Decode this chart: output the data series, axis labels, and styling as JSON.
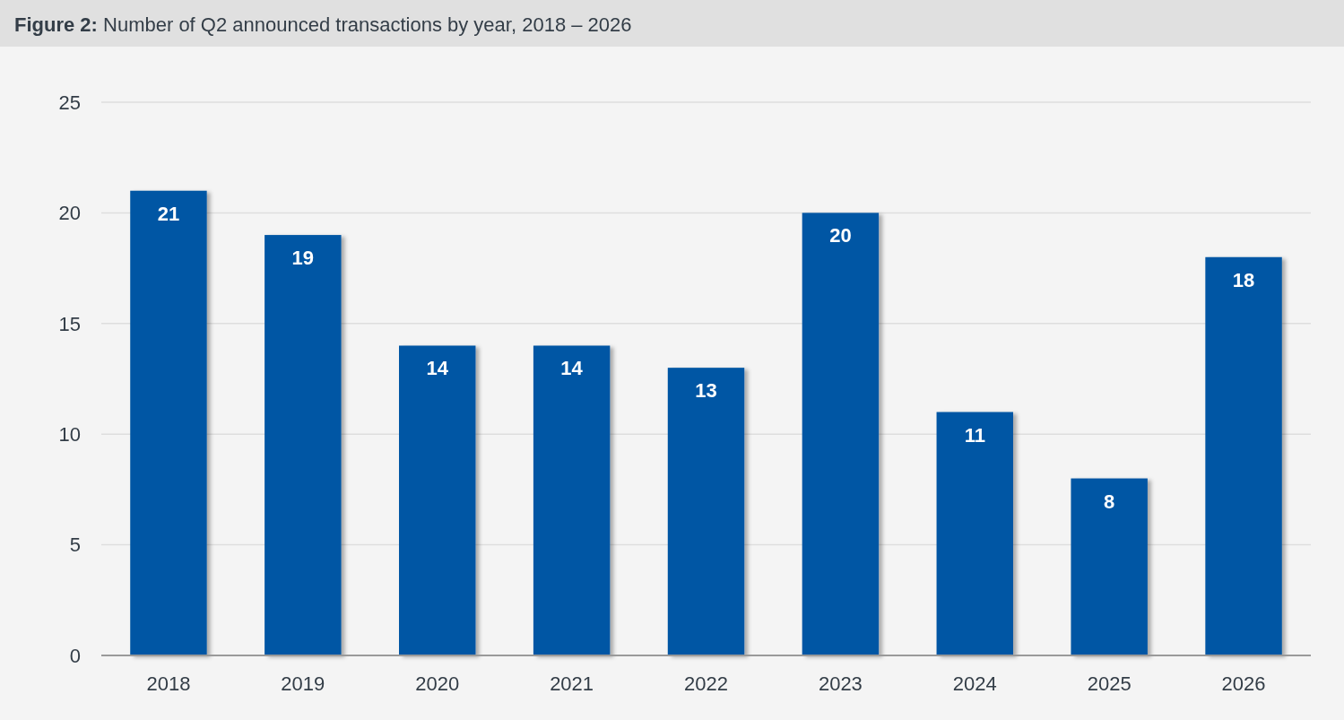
{
  "chart_data": {
    "type": "bar",
    "title": "Figure 2: Number of Q2 announced transactions by year, 2018 – 2026",
    "categories": [
      "2018",
      "2019",
      "2020",
      "2021",
      "2022",
      "2023",
      "2024",
      "2025",
      "2026"
    ],
    "values": [
      21,
      19,
      14,
      14,
      13,
      20,
      11,
      8,
      18
    ],
    "color": "#0057a4",
    "ylim": [
      0,
      25
    ],
    "yticks": [
      0,
      5,
      10,
      15,
      20,
      25
    ],
    "grid": "y",
    "data_labels": true
  }
}
